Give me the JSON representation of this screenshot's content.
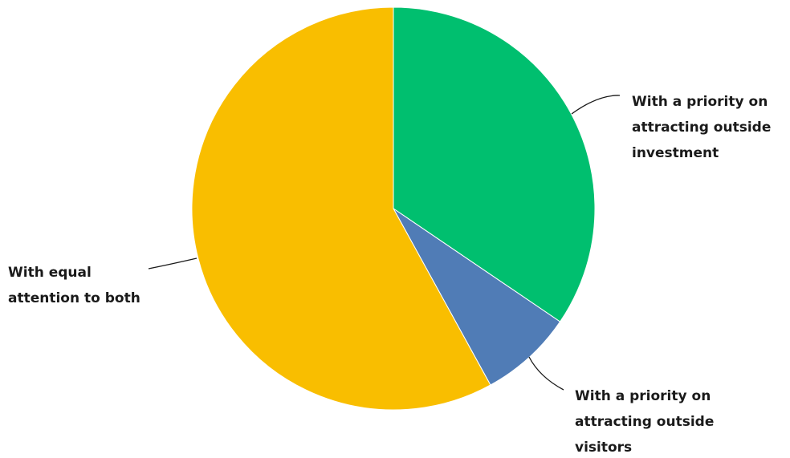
{
  "chart_data": {
    "type": "pie",
    "title": "",
    "slices": [
      {
        "label": "With a priority on attracting outside investment",
        "label_lines": [
          "With a priority on",
          "attracting outside",
          "investment"
        ],
        "value": 34.5,
        "color": "#00BF6F"
      },
      {
        "label": "With a priority on attracting outside visitors",
        "label_lines": [
          "With a priority on",
          "attracting outside",
          "visitors"
        ],
        "value": 7.5,
        "color": "#507CB6"
      },
      {
        "label": "With equal attention to both",
        "label_lines": [
          "With equal",
          "attention to both"
        ],
        "value": 58.0,
        "color": "#F9BE00"
      }
    ],
    "start_angle": "12 o'clock",
    "direction": "clockwise",
    "legend": "none (direct labels with leader lines)"
  }
}
